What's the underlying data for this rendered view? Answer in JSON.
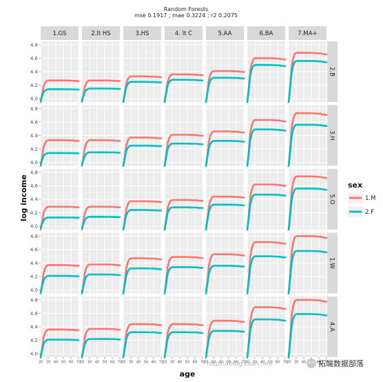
{
  "chart_data": {
    "type": "line",
    "title": "Random Forests",
    "subtitle": "mse 0.1917 ; mae 0.3224 ; r2 0.2075",
    "xlabel": "age",
    "ylabel": "log income",
    "xlim": [
      20,
      70
    ],
    "ylim": [
      3.95,
      4.85
    ],
    "x_ticks": [
      20,
      30,
      40,
      50,
      60,
      70
    ],
    "y_ticks": [
      4.0,
      4.2,
      4.4,
      4.6,
      4.8
    ],
    "grid": true,
    "legend_position": "right",
    "legend_title": "sex",
    "col_facets": [
      "1.GS",
      "2.lt HS",
      "3.HS",
      "4. lt C",
      "5.AA",
      "6.BA",
      "7.MA+"
    ],
    "row_facets": [
      "2.B",
      "3.H",
      "5.O",
      "1.W",
      "4.A"
    ],
    "x": [
      20,
      22,
      24,
      26,
      28,
      30,
      35,
      40,
      45,
      50,
      55,
      60,
      62,
      64,
      66,
      68,
      70
    ],
    "series": [
      {
        "name": "1.M",
        "color": "#F8766D"
      },
      {
        "name": "2.F",
        "color": "#00BFC4"
      }
    ],
    "plateaus": {
      "M": [
        [
          4.27,
          4.27,
          4.33,
          4.36,
          4.41,
          4.6,
          4.68
        ],
        [
          4.33,
          4.33,
          4.37,
          4.41,
          4.46,
          4.63,
          4.73
        ],
        [
          4.29,
          4.29,
          4.37,
          4.39,
          4.44,
          4.62,
          4.74
        ],
        [
          4.37,
          4.38,
          4.47,
          4.49,
          4.53,
          4.71,
          4.8
        ],
        [
          4.36,
          4.37,
          4.44,
          4.44,
          4.49,
          4.69,
          4.8
        ]
      ],
      "F": [
        [
          4.14,
          4.15,
          4.25,
          4.28,
          4.31,
          4.5,
          4.56
        ],
        [
          4.14,
          4.15,
          4.25,
          4.28,
          4.32,
          4.49,
          4.56
        ],
        [
          4.13,
          4.14,
          4.24,
          4.28,
          4.32,
          4.47,
          4.56
        ],
        [
          4.21,
          4.23,
          4.32,
          4.34,
          4.36,
          4.5,
          4.58
        ],
        [
          4.21,
          4.22,
          4.32,
          4.32,
          4.34,
          4.51,
          4.59
        ]
      ]
    },
    "curve_shape": [
      -0.22,
      0.28,
      0.7,
      0.88,
      0.97,
      1.0,
      1.0,
      1.0,
      1.0,
      1.0,
      0.995,
      0.99,
      0.99,
      0.98,
      0.975,
      0.97,
      0.965
    ]
  },
  "watermark": {
    "url": "https://blog.csdn.net/",
    "brand": "拓端数据部落",
    "icon": "wechat-icon"
  }
}
